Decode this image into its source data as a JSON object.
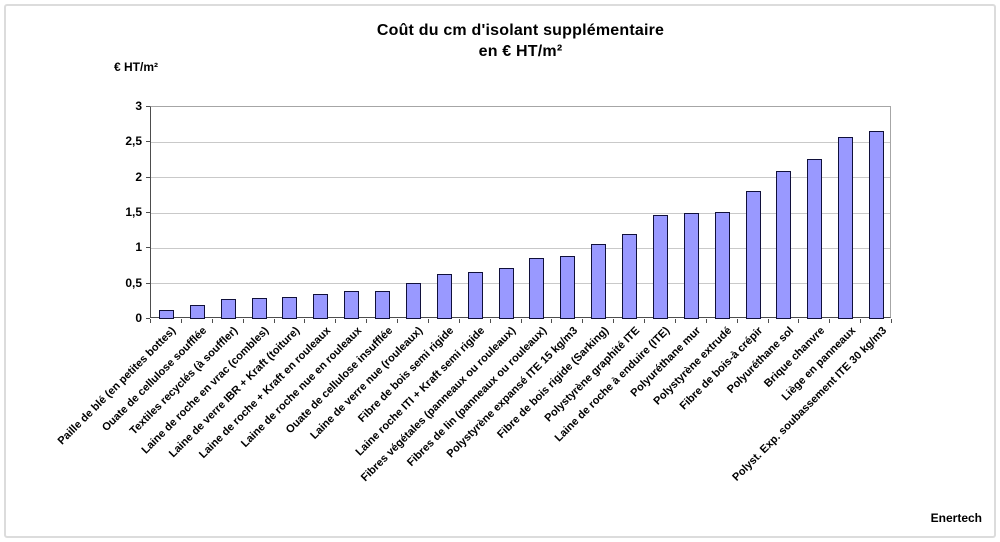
{
  "figure": {
    "source_label": "Enertech"
  },
  "chart_data": {
    "type": "bar",
    "title": "Coût du cm d'isolant supplémentaire",
    "subtitle": "en € HT/m²",
    "y_axis_title": "€ HT/m²",
    "xlabel": "",
    "ylabel": "€ HT/m²",
    "ylim": [
      0,
      3
    ],
    "grid": true,
    "legend": "none",
    "yticks": [
      {
        "value": 0,
        "label": "0"
      },
      {
        "value": 0.5,
        "label": "0,5"
      },
      {
        "value": 1,
        "label": "1"
      },
      {
        "value": 1.5,
        "label": "1,5"
      },
      {
        "value": 2,
        "label": "2"
      },
      {
        "value": 2.5,
        "label": "2,5"
      },
      {
        "value": 3,
        "label": "3"
      }
    ],
    "categories": [
      "Paille de blé (en petites bottes)",
      "Ouate de cellulose soufflée",
      "Textiles recyclés (à souffler)",
      "Laine de roche en vrac (combles)",
      "Laine de verre IBR + Kraft (toiture)",
      "Laine de roche + Kraft en rouleaux",
      "Laine de roche nue en rouleaux",
      "Ouate de cellulose insufflée",
      "Laine de verre nue (rouleaux)",
      "Fibre de bois semi rigide",
      "Laine roche ITI + Kraft semi rigide",
      "Fibres végétales (panneaux ou rouleaux)",
      "Fibres de lin (panneaux ou rouleaux)",
      "Polystyrène expansé ITE 15 kg/m3",
      "Fibre de bois rigide (Sarking)",
      "Polystyrène graphité ITE",
      "Laine de roche à enduire (ITE)",
      "Polyuréthane mur",
      "Polystyrène extrudé",
      "Fibre de bois-à crépir",
      "Polyuréthane sol",
      "Brique chanvre",
      "Liège en panneaux",
      "Polyst. Exp. soubassement ITE 30 kg/m3"
    ],
    "values": [
      0.13,
      0.2,
      0.28,
      0.3,
      0.31,
      0.36,
      0.39,
      0.4,
      0.51,
      0.64,
      0.66,
      0.72,
      0.87,
      0.89,
      1.06,
      1.2,
      1.47,
      1.5,
      1.51,
      1.81,
      2.09,
      2.26,
      2.58,
      2.66
    ],
    "colors": {
      "bar_fill": "#9999ff",
      "bar_border": "#10103a",
      "gridline": "#c9c9c9",
      "plot_border_light": "#a6a6a6",
      "axis_line": "#4d4d4d",
      "text": "#000000",
      "figure_border": "#dcdcdc"
    }
  }
}
